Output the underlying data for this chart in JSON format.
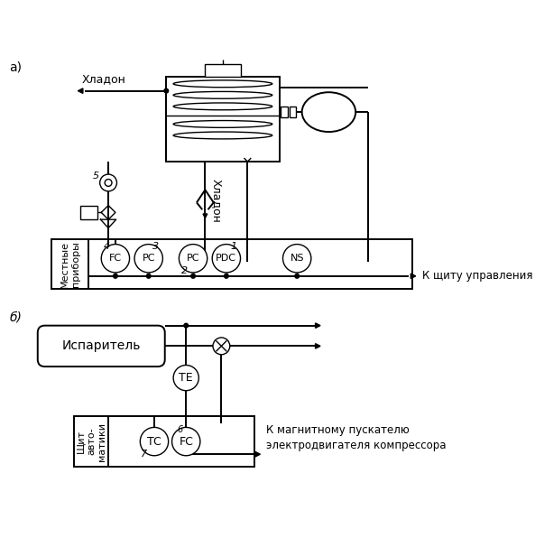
{
  "bg_color": "#ffffff",
  "line_color": "#000000",
  "label_a": "а)",
  "label_b": "б)",
  "text_khladon1": "Хладон",
  "text_khladon2": "Хладон",
  "text_mestnye": "Местные\nприборы",
  "text_k_schitu": "К щиту управления",
  "text_isparitel": "Испаритель",
  "text_schit_avt": "Щит\nавто-\nматики",
  "text_k_magn": "К магнитному пускателю\nэлектродвигателя компрессора",
  "instruments_a": [
    "FC",
    "PC",
    "PC",
    "PDC",
    "NS"
  ],
  "numbers_a": [
    "4",
    "3",
    "2",
    "1",
    ""
  ],
  "instruments_b": [
    "TE",
    "TC",
    "FC"
  ],
  "numbers_b": [
    "",
    "7",
    "6"
  ]
}
